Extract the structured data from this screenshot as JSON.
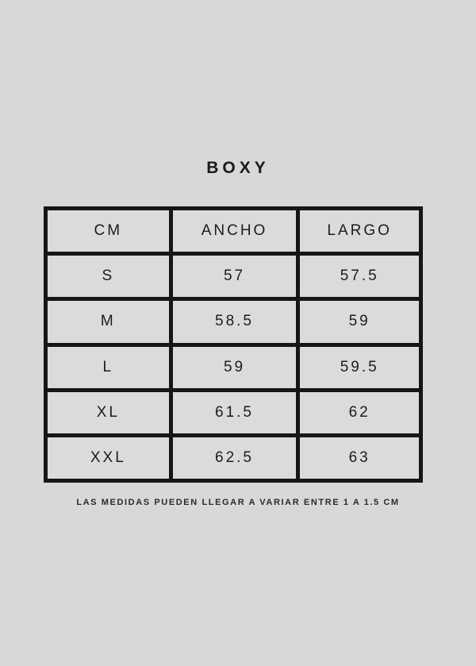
{
  "page": {
    "title": "BOXY",
    "footnote": "LAS MEDIDAS PUEDEN LLEGAR A VARIAR ENTRE 1 A 1.5 CM"
  },
  "colors": {
    "background": "#d8d8d8",
    "cell_background": "#dbdbdb",
    "line": "#161616",
    "text": "#1a1a1a"
  },
  "chart_data": {
    "type": "table",
    "title": "BOXY",
    "columns": [
      "CM",
      "ANCHO",
      "LARGO"
    ],
    "rows": [
      [
        "S",
        "57",
        "57.5"
      ],
      [
        "M",
        "58.5",
        "59"
      ],
      [
        "L",
        "59",
        "59.5"
      ],
      [
        "XL",
        "61.5",
        "62"
      ],
      [
        "XXL",
        "62.5",
        "63"
      ]
    ],
    "footnote": "LAS MEDIDAS PUEDEN LLEGAR A VARIAR ENTRE 1 A 1.5 CM",
    "layout_hints": {
      "header_row": true,
      "grid": "on",
      "unit": "cm"
    }
  }
}
